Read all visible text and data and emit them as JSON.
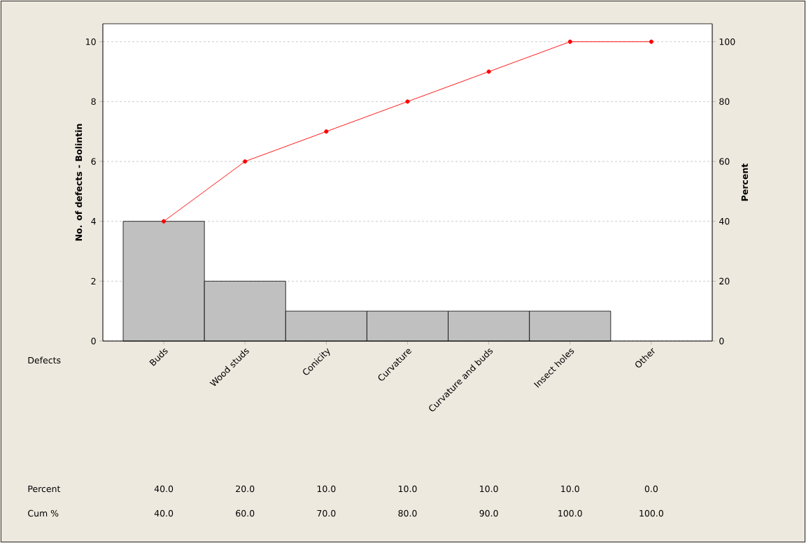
{
  "chart_data": {
    "type": "bar",
    "xlabel": "Defects",
    "ylabel": "No. of defects - Bolintin",
    "y2label": "Percent",
    "categories": [
      "Buds",
      "Wood studs",
      "Conicity",
      "Curvature",
      "Curvature and buds",
      "Insect holes",
      "Other"
    ],
    "series": [
      {
        "color": "#c0c0c0",
        "values": [
          4,
          2,
          1,
          1,
          1,
          1,
          0
        ]
      },
      {
        "type": "line",
        "axis": "y2",
        "color": "#ff0000",
        "values": [
          40,
          60,
          70,
          80,
          90,
          100,
          100
        ],
        "value_labels": [
          "40.0",
          "60.0",
          "70.0",
          "80.0",
          "90.0",
          "100.0",
          "100.0"
        ]
      }
    ],
    "ylim": [
      0,
      10.6
    ],
    "yticks": [
      0,
      2,
      4,
      6,
      8,
      10
    ],
    "y2lim": [
      0,
      106
    ],
    "y2ticks": [
      0,
      20,
      40,
      60,
      80,
      100
    ],
    "grid": "y",
    "marker": "circle",
    "line_style": "solid",
    "annotations": [
      "Percent",
      "Cum %",
      "40.0",
      "20.0",
      "10.0",
      "10.0",
      "10.0",
      "10.0",
      "0.0"
    ]
  }
}
